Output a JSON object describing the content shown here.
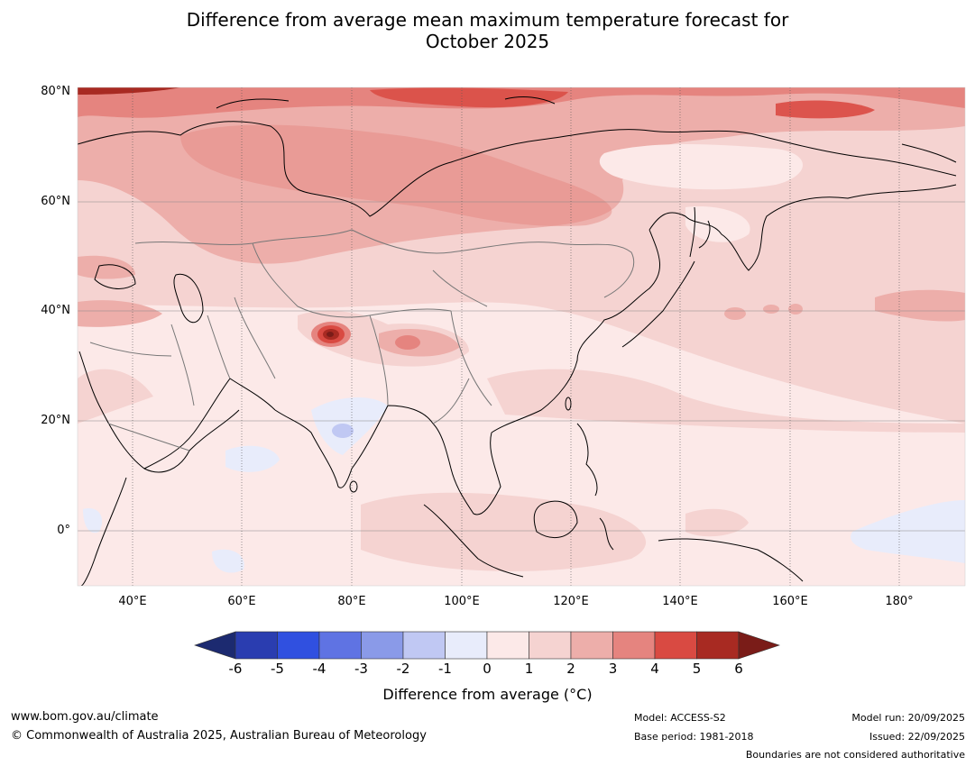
{
  "title_line1": "Difference from average mean maximum temperature forecast for",
  "title_line2": "October 2025",
  "map": {
    "lat_labels": [
      "80°N",
      "60°N",
      "40°N",
      "20°N",
      "0°"
    ],
    "lon_labels": [
      "40°E",
      "60°E",
      "80°E",
      "100°E",
      "120°E",
      "140°E",
      "160°E",
      "180°"
    ]
  },
  "colorbar": {
    "ticks": [
      "-6",
      "-5",
      "-4",
      "-3",
      "-2",
      "-1",
      "0",
      "1",
      "2",
      "3",
      "4",
      "5",
      "6"
    ],
    "colors": [
      "#1c2a70",
      "#2a3db0",
      "#3050e0",
      "#5f73e3",
      "#8a9ae8",
      "#c0c8f3",
      "#e8ecfb",
      "#fce9e8",
      "#f5d3d1",
      "#edaeaa",
      "#e5847f",
      "#d94a42",
      "#a82a22",
      "#7a1c18"
    ],
    "label": "Difference from average (",
    "label_unit": "°C",
    "label_close": ")"
  },
  "footer": {
    "website": "www.bom.gov.au/climate",
    "copyright": "© Commonwealth of Australia 2025, Australian Bureau of Meteorology",
    "model": "Model: ACCESS-S2",
    "base_period": "Base period: 1981-2018",
    "model_run": "Model run: 20/09/2025",
    "issued": "Issued: 22/09/2025",
    "disclaimer": "Boundaries are not considered authoritative"
  }
}
